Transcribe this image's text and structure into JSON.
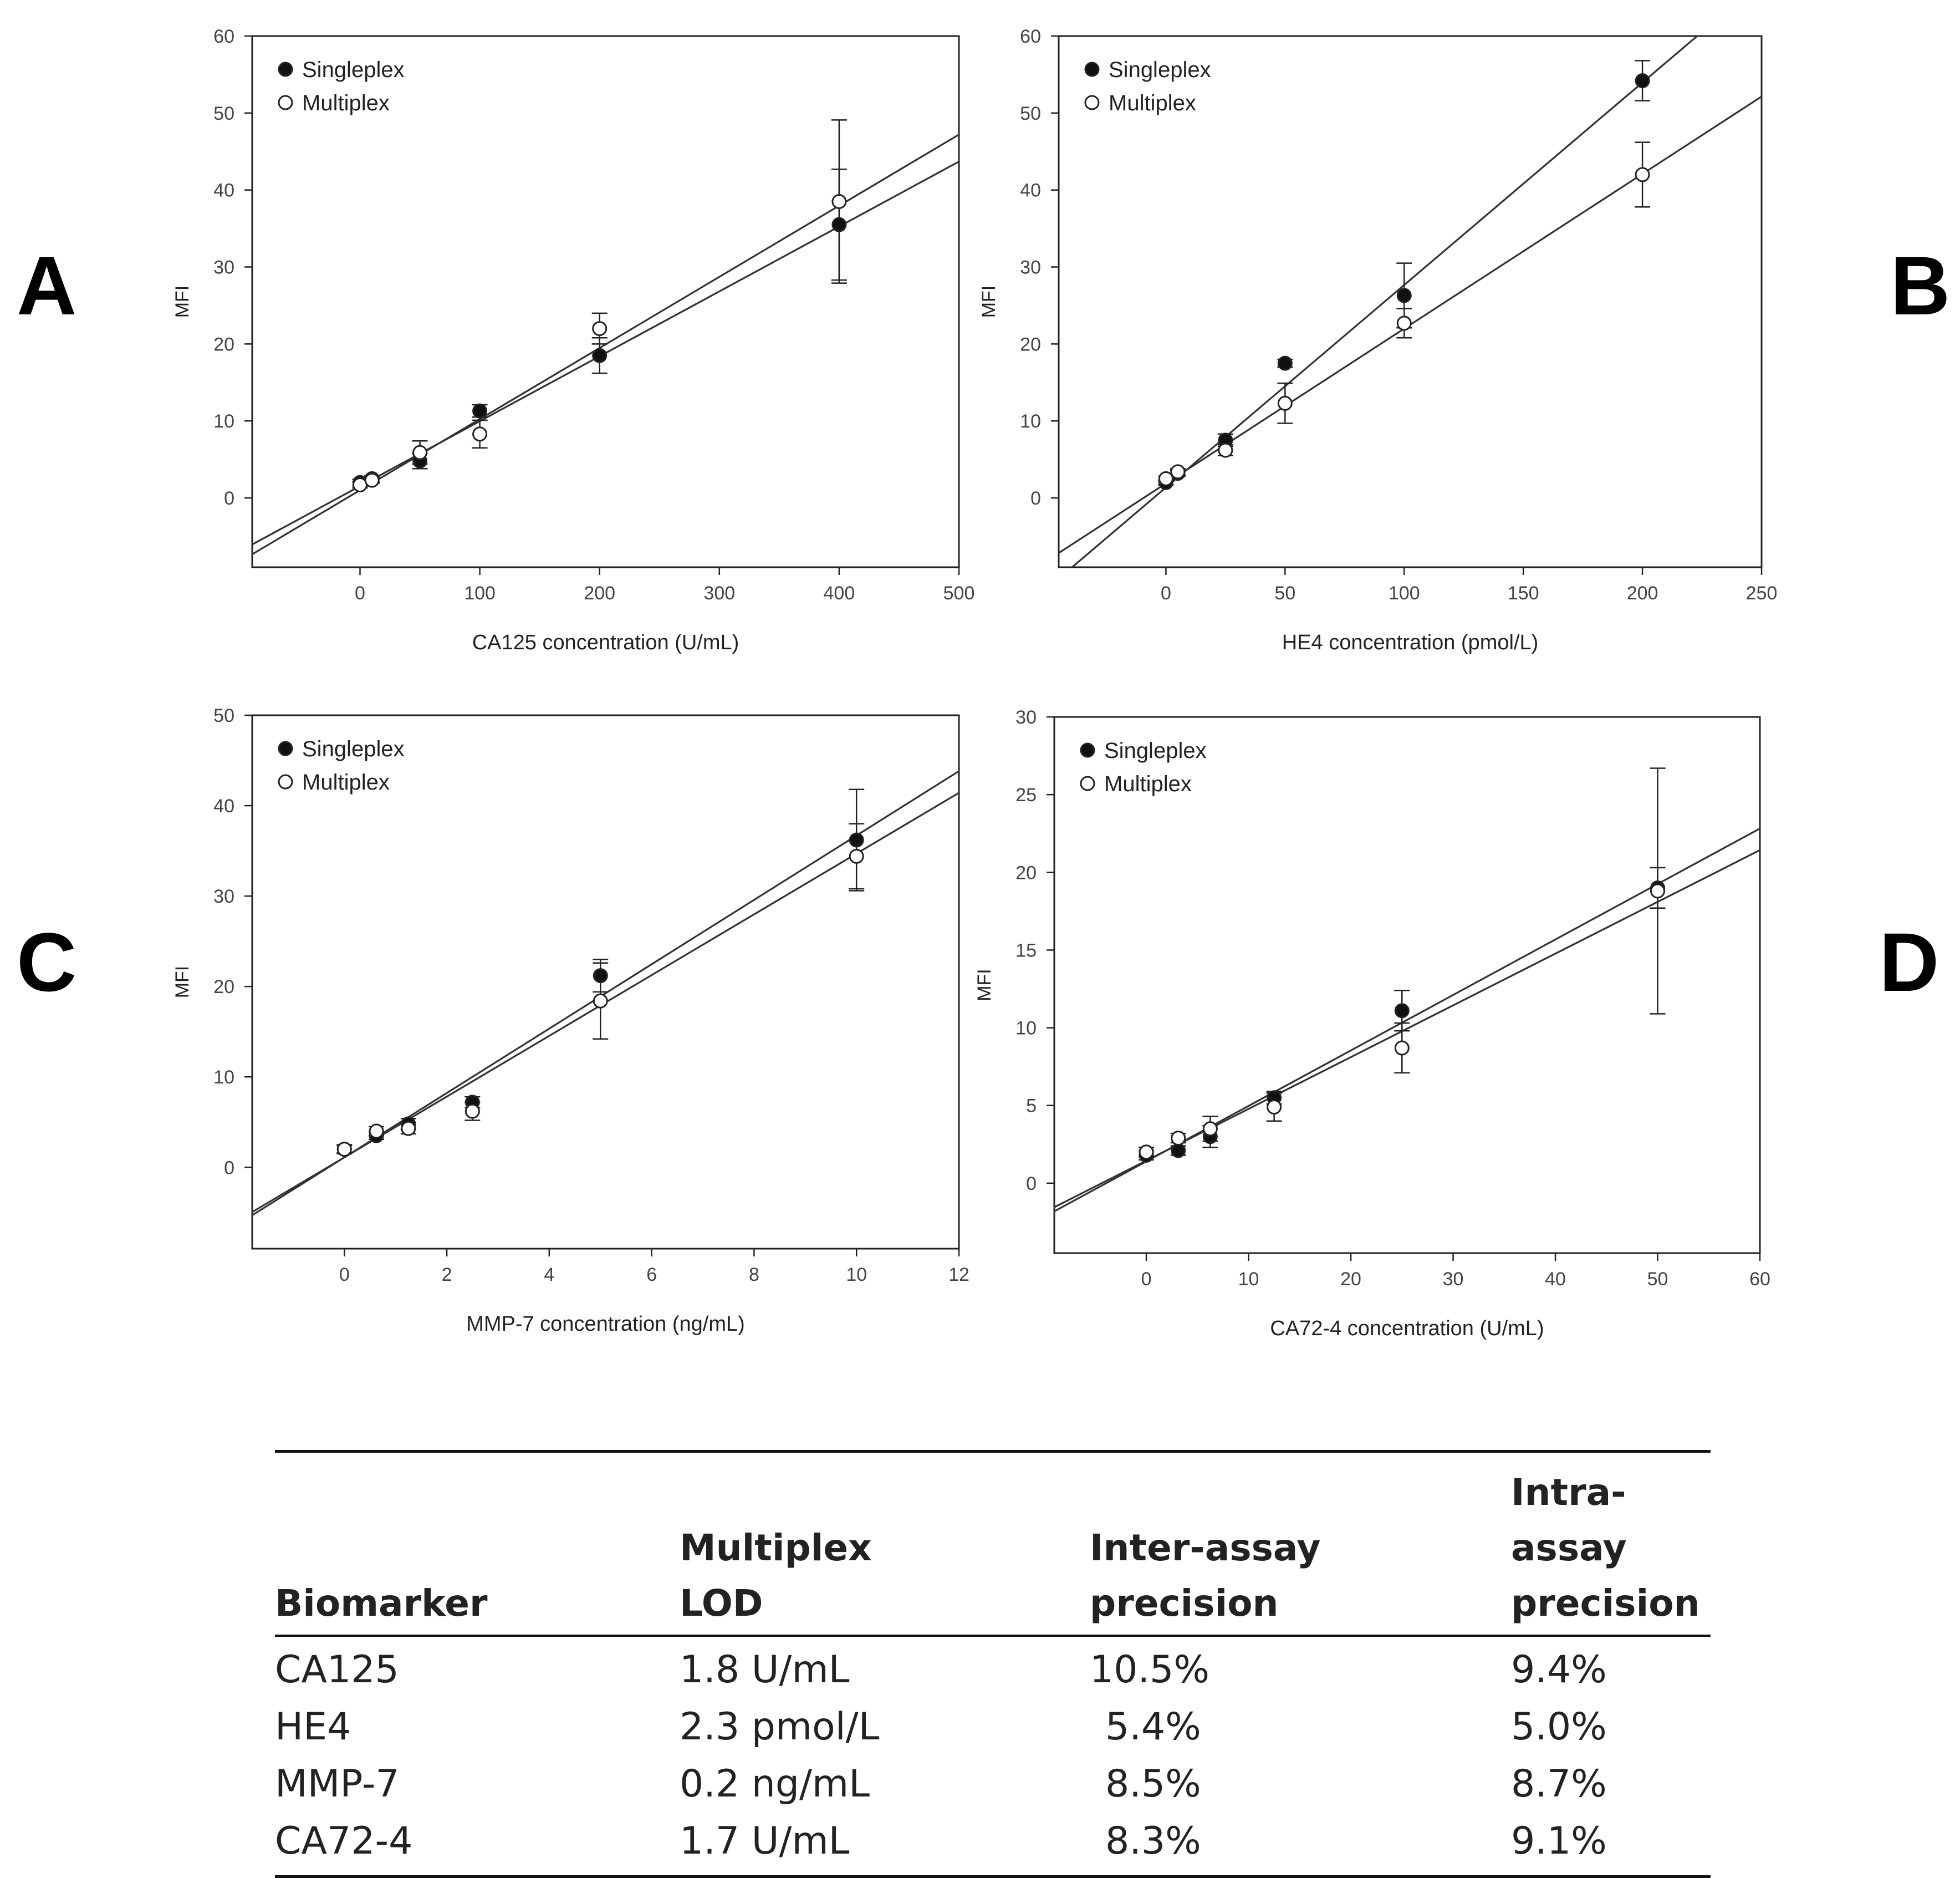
{
  "panels": [
    "A",
    "B",
    "C",
    "D"
  ],
  "legend": {
    "singleplex": "Singleplex",
    "multiplex": "Multiplex"
  },
  "chart_data": [
    {
      "id": "A",
      "type": "scatter",
      "title": "",
      "xlabel": "CA125 concentration (U/mL)",
      "ylabel": "MFI",
      "xlim": [
        -90,
        500
      ],
      "ylim": [
        -9,
        60
      ],
      "xticks": [
        0,
        100,
        200,
        300,
        400,
        500
      ],
      "yticks": [
        0,
        10,
        20,
        30,
        40,
        50,
        60
      ],
      "series": [
        {
          "name": "Singleplex",
          "marker": "filled",
          "x": [
            0,
            10,
            50,
            100,
            200,
            400
          ],
          "y": [
            2.0,
            2.5,
            4.8,
            11.3,
            18.5,
            35.5
          ],
          "err": [
            0.4,
            0.4,
            1.0,
            0.8,
            2.3,
            7.2
          ],
          "fit": {
            "slope": 0.0843,
            "intercept": 1.54
          }
        },
        {
          "name": "Multiplex",
          "marker": "open",
          "x": [
            0,
            10,
            50,
            100,
            200,
            400
          ],
          "y": [
            1.7,
            2.3,
            5.9,
            8.3,
            22.0,
            38.5
          ],
          "err": [
            0.4,
            0.4,
            1.5,
            1.8,
            2.0,
            10.6
          ],
          "fit": {
            "slope": 0.0924,
            "intercept": 1.0
          }
        }
      ]
    },
    {
      "id": "B",
      "type": "scatter",
      "title": "",
      "xlabel": "HE4 concentration (pmol/L)",
      "ylabel": "MFI",
      "xlim": [
        -45,
        250
      ],
      "ylim": [
        -9,
        60
      ],
      "xticks": [
        0,
        50,
        100,
        150,
        200,
        250
      ],
      "yticks": [
        0,
        10,
        20,
        30,
        40,
        50,
        60
      ],
      "series": [
        {
          "name": "Singleplex",
          "marker": "filled",
          "x": [
            0,
            5,
            25,
            50,
            100,
            200
          ],
          "y": [
            2.0,
            3.2,
            7.5,
            17.5,
            26.3,
            54.2
          ],
          "err": [
            0.3,
            0.4,
            0.8,
            0.5,
            4.2,
            2.6
          ],
          "fit": {
            "slope": 0.263,
            "intercept": 1.36
          }
        },
        {
          "name": "Multiplex",
          "marker": "open",
          "x": [
            0,
            5,
            25,
            50,
            100,
            200
          ],
          "y": [
            2.5,
            3.4,
            6.2,
            12.3,
            22.7,
            42.0
          ],
          "err": [
            0.3,
            0.4,
            0.7,
            2.6,
            1.9,
            4.2
          ],
          "fit": {
            "slope": 0.201,
            "intercept": 1.89
          }
        }
      ]
    },
    {
      "id": "C",
      "type": "scatter",
      "title": "",
      "xlabel": "MMP-7 concentration (ng/mL)",
      "ylabel": "MFI",
      "xlim": [
        -1.8,
        12
      ],
      "ylim": [
        -9,
        50
      ],
      "xticks": [
        0,
        2,
        4,
        6,
        8,
        10,
        12
      ],
      "yticks": [
        0,
        10,
        20,
        30,
        40,
        50
      ],
      "series": [
        {
          "name": "Singleplex",
          "marker": "filled",
          "x": [
            0,
            0.625,
            1.25,
            2.5,
            5,
            10
          ],
          "y": [
            2.0,
            3.5,
            4.8,
            7.2,
            21.2,
            36.2
          ],
          "err": [
            0.4,
            0.4,
            0.6,
            0.6,
            1.8,
            5.6
          ],
          "fit": {
            "slope": 3.56,
            "intercept": 1.1
          }
        },
        {
          "name": "Multiplex",
          "marker": "open",
          "x": [
            0,
            0.625,
            1.25,
            2.5,
            5,
            10
          ],
          "y": [
            2.0,
            4.0,
            4.3,
            6.2,
            18.4,
            34.4
          ],
          "err": [
            0.5,
            0.5,
            0.6,
            1.0,
            4.2,
            3.6
          ],
          "fit": {
            "slope": 3.36,
            "intercept": 1.1
          }
        }
      ]
    },
    {
      "id": "D",
      "type": "scatter",
      "title": "",
      "xlabel": "CA72-4 concentration (U/mL)",
      "ylabel": "MFI",
      "xlim": [
        -9,
        60
      ],
      "ylim": [
        -4.5,
        30
      ],
      "xticks": [
        0,
        10,
        20,
        30,
        40,
        50,
        60
      ],
      "yticks": [
        0,
        5,
        10,
        15,
        20,
        25,
        30
      ],
      "series": [
        {
          "name": "Singleplex",
          "marker": "filled",
          "x": [
            0,
            3.125,
            6.25,
            12.5,
            25,
            50
          ],
          "y": [
            1.8,
            2.1,
            3.0,
            5.5,
            11.1,
            19.0
          ],
          "err": [
            0.3,
            0.3,
            0.7,
            0.4,
            1.3,
            1.3
          ],
          "fit": {
            "slope": 0.357,
            "intercept": 1.4
          }
        },
        {
          "name": "Multiplex",
          "marker": "open",
          "x": [
            0,
            3.125,
            6.25,
            12.5,
            25,
            50
          ],
          "y": [
            2.0,
            2.9,
            3.5,
            4.9,
            8.7,
            18.8
          ],
          "err": [
            0.3,
            0.3,
            0.8,
            0.9,
            1.6,
            7.9
          ],
          "fit": {
            "slope": 0.333,
            "intercept": 1.45
          }
        }
      ]
    }
  ],
  "table": {
    "headers": [
      {
        "line1": "",
        "line2": "Biomarker"
      },
      {
        "line1": "Multiplex",
        "line2": "LOD"
      },
      {
        "line1": "Inter-assay",
        "line2": "precision"
      },
      {
        "line1": "Intra-assay",
        "line2": "precision"
      }
    ],
    "rows": [
      [
        "CA125",
        "1.8 U/mL",
        "10.5%",
        "9.4%"
      ],
      [
        "HE4",
        "2.3 pmol/L",
        "5.4%",
        "5.0%"
      ],
      [
        "MMP-7",
        "0.2 ng/mL",
        "8.5%",
        "8.7%"
      ],
      [
        "CA72-4",
        "1.7 U/mL",
        "8.3%",
        "9.1%"
      ]
    ]
  }
}
